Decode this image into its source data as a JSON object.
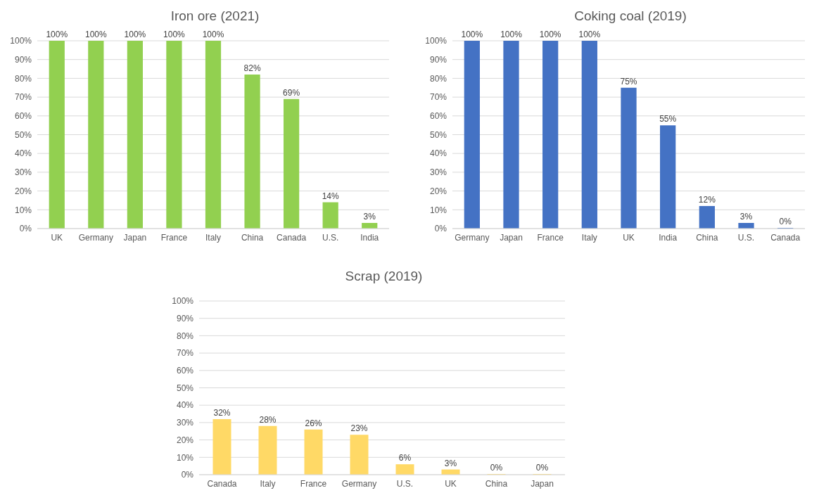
{
  "chart_data": [
    {
      "type": "bar",
      "title": "Iron ore (2021)",
      "categories": [
        "UK",
        "Germany",
        "Japan",
        "France",
        "Italy",
        "China",
        "Canada",
        "U.S.",
        "India"
      ],
      "values": [
        100,
        100,
        100,
        100,
        100,
        82,
        69,
        14,
        3
      ],
      "color": "#92d050",
      "value_labels": [
        "100%",
        "100%",
        "100%",
        "100%",
        "100%",
        "82%",
        "69%",
        "14%",
        "3%"
      ],
      "ylim": [
        0,
        100
      ],
      "yticks": [
        {
          "value": 0,
          "label": "0%"
        },
        {
          "value": 10,
          "label": "10%"
        },
        {
          "value": 20,
          "label": "20%"
        },
        {
          "value": 30,
          "label": "30%"
        },
        {
          "value": 40,
          "label": "40%"
        },
        {
          "value": 50,
          "label": "50%"
        },
        {
          "value": 60,
          "label": "60%"
        },
        {
          "value": 70,
          "label": "70%"
        },
        {
          "value": 80,
          "label": "80%"
        },
        {
          "value": 90,
          "label": "90%"
        },
        {
          "value": 100,
          "label": "100%"
        }
      ],
      "grid": "y"
    },
    {
      "type": "bar",
      "title": "Coking coal (2019)",
      "categories": [
        "Germany",
        "Japan",
        "France",
        "Italy",
        "UK",
        "India",
        "China",
        "U.S.",
        "Canada"
      ],
      "values": [
        100,
        100,
        100,
        100,
        75,
        55,
        12,
        3,
        0
      ],
      "color": "#4472c4",
      "value_labels": [
        "100%",
        "100%",
        "100%",
        "100%",
        "75%",
        "55%",
        "12%",
        "3%",
        "0%"
      ],
      "ylim": [
        0,
        100
      ],
      "yticks": [
        {
          "value": 0,
          "label": "0%"
        },
        {
          "value": 10,
          "label": "10%"
        },
        {
          "value": 20,
          "label": "20%"
        },
        {
          "value": 30,
          "label": "30%"
        },
        {
          "value": 40,
          "label": "40%"
        },
        {
          "value": 50,
          "label": "50%"
        },
        {
          "value": 60,
          "label": "60%"
        },
        {
          "value": 70,
          "label": "70%"
        },
        {
          "value": 80,
          "label": "80%"
        },
        {
          "value": 90,
          "label": "90%"
        },
        {
          "value": 100,
          "label": "100%"
        }
      ],
      "grid": "y"
    },
    {
      "type": "bar",
      "title": "Scrap (2019)",
      "categories": [
        "Canada",
        "Italy",
        "France",
        "Germany",
        "U.S.",
        "UK",
        "China",
        "Japan"
      ],
      "values": [
        32,
        28,
        26,
        23,
        6,
        3,
        0,
        0
      ],
      "color": "#ffd966",
      "value_labels": [
        "32%",
        "28%",
        "26%",
        "23%",
        "6%",
        "3%",
        "0%",
        "0%"
      ],
      "ylim": [
        0,
        100
      ],
      "yticks": [
        {
          "value": 0,
          "label": "0%"
        },
        {
          "value": 10,
          "label": "10%"
        },
        {
          "value": 20,
          "label": "20%"
        },
        {
          "value": 30,
          "label": "30%"
        },
        {
          "value": 40,
          "label": "40%"
        },
        {
          "value": 50,
          "label": "50%"
        },
        {
          "value": 60,
          "label": "60%"
        },
        {
          "value": 70,
          "label": "70%"
        },
        {
          "value": 80,
          "label": "80%"
        },
        {
          "value": 90,
          "label": "90%"
        },
        {
          "value": 100,
          "label": "100%"
        }
      ],
      "grid": "y"
    }
  ]
}
